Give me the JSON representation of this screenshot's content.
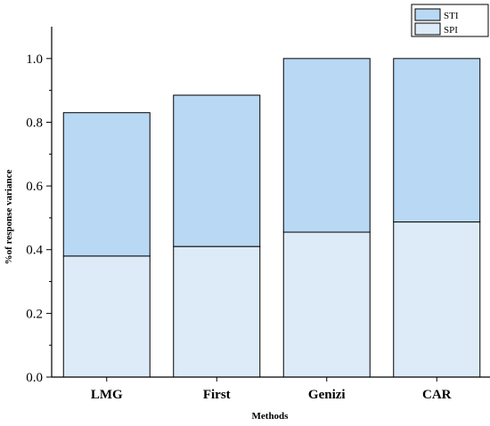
{
  "chart_data": {
    "type": "bar",
    "stacked": true,
    "categories": [
      "LMG",
      "First",
      "Genizi",
      "CAR"
    ],
    "series": [
      {
        "name": "SPI",
        "values": [
          0.38,
          0.41,
          0.455,
          0.487
        ],
        "color": "#ddebf8"
      },
      {
        "name": "STI",
        "values": [
          0.45,
          0.475,
          0.545,
          0.513
        ],
        "color": "#b8d8f4"
      }
    ],
    "title": "",
    "xlabel": "Methods",
    "ylabel": "%of response variance",
    "ylim": [
      0,
      1.1
    ],
    "yticks": [
      "0.0",
      "0.2",
      "0.4",
      "0.6",
      "0.8",
      "1.0"
    ],
    "grid": false,
    "legend_position": "top-right",
    "legend_order": [
      "STI",
      "SPI"
    ]
  }
}
